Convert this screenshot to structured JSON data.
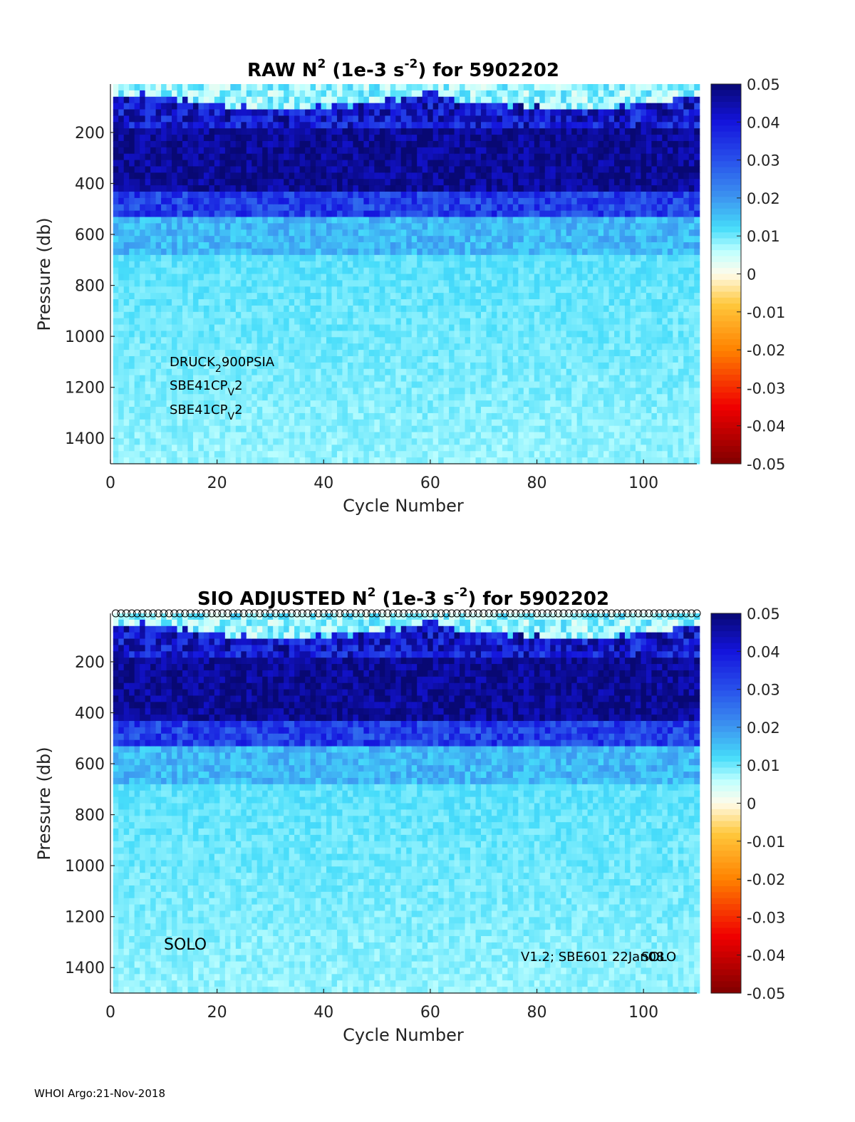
{
  "footer": "WHOI Argo:21-Nov-2018",
  "colorbar": {
    "ticks": [
      "0.05",
      "0.04",
      "0.03",
      "0.02",
      "0.01",
      "0",
      "-0.01",
      "-0.02",
      "-0.03",
      "-0.04",
      "-0.05"
    ],
    "min": -0.05,
    "max": 0.05
  },
  "chart_data": [
    {
      "type": "heatmap",
      "title": {
        "pre": "RAW N",
        "sup1": "2",
        "mid": " (1e-3 s",
        "sup2": "-2",
        "post": ") for 5902202"
      },
      "xlabel": "Cycle Number",
      "ylabel": "Pressure (db)",
      "xlim": [
        0,
        110
      ],
      "ylim": [
        1500,
        10
      ],
      "xticks": [
        "0",
        "20",
        "40",
        "60",
        "80",
        "100"
      ],
      "yticks": [
        "200",
        "400",
        "600",
        "800",
        "1000",
        "1200",
        "1400"
      ],
      "clim": [
        -0.05,
        0.05
      ],
      "sensor_lines": [
        {
          "text": "DRUCK",
          "sub": "2",
          "rest": "900PSIA"
        },
        {
          "text": "SBE41CP",
          "sub": "V",
          "rest": "2"
        },
        {
          "text": "SBE41CP",
          "sub": "V",
          "rest": "2"
        }
      ],
      "layers": [
        {
          "from_db": 10,
          "to_db": 180,
          "desc": "mixed surface layer, values near 0 to 0.05"
        },
        {
          "from_db": 180,
          "to_db": 450,
          "value": 0.05
        },
        {
          "from_db": 450,
          "to_db": 550,
          "value": 0.035
        },
        {
          "from_db": 550,
          "to_db": 700,
          "value": 0.014
        },
        {
          "from_db": 700,
          "to_db": 1500,
          "value": 0.011
        }
      ]
    },
    {
      "type": "heatmap",
      "title": {
        "pre": "SIO  ADJUSTED N",
        "sup1": "2",
        "mid": " (1e-3 s",
        "sup2": "-2",
        "post": ") for 5902202"
      },
      "xlabel": "Cycle Number",
      "ylabel": "Pressure (db)",
      "xlim": [
        0,
        110
      ],
      "ylim": [
        1500,
        10
      ],
      "xticks": [
        "0",
        "20",
        "40",
        "60",
        "80",
        "100"
      ],
      "yticks": [
        "200",
        "400",
        "600",
        "800",
        "1000",
        "1200",
        "1400"
      ],
      "clim": [
        -0.05,
        0.05
      ],
      "annot_left": "SOLO",
      "annot_right_a": "V1.2; SBE601 22Jan08",
      "annot_right_b": "SOLO",
      "markers": {
        "shape": "circle",
        "count": 110
      },
      "layers": [
        {
          "from_db": 10,
          "to_db": 180,
          "desc": "mixed surface layer, values near 0 to 0.05"
        },
        {
          "from_db": 180,
          "to_db": 450,
          "value": 0.05
        },
        {
          "from_db": 450,
          "to_db": 550,
          "value": 0.035
        },
        {
          "from_db": 550,
          "to_db": 700,
          "value": 0.014
        },
        {
          "from_db": 700,
          "to_db": 1500,
          "value": 0.011
        }
      ]
    }
  ]
}
